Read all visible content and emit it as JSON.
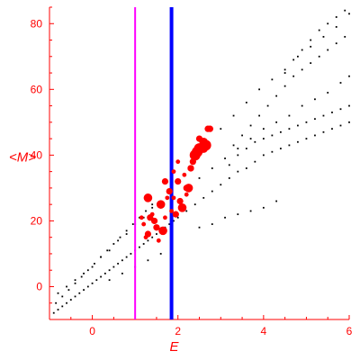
{
  "chart_data": {
    "type": "scatter",
    "title": "",
    "xlabel": "E",
    "ylabel": "<M>",
    "xlim": [
      -1,
      6
    ],
    "ylim": [
      -10,
      85
    ],
    "grid": false,
    "x_ticks": [
      "0",
      "2",
      "4",
      "6"
    ],
    "x_tick_values": [
      0,
      2,
      4,
      6
    ],
    "y_ticks": [
      "0",
      "20",
      "40",
      "60",
      "80"
    ],
    "y_tick_values": [
      0,
      20,
      40,
      60,
      80
    ],
    "axis_color": "#ff0000",
    "series": [
      {
        "color": "#000000",
        "marker": "small-dot",
        "x": [
          -0.9,
          -0.8,
          -0.7,
          -0.6,
          -0.5,
          -0.4,
          -0.3,
          -0.2,
          -0.1,
          0.0,
          0.1,
          0.2,
          0.3,
          0.4,
          0.5,
          0.6,
          0.7,
          0.8,
          0.9,
          1.0,
          1.1,
          1.2,
          1.3,
          1.4,
          1.5,
          1.6,
          1.7,
          1.8,
          1.9,
          2.0,
          2.2,
          2.4,
          2.6,
          2.8,
          3.0,
          3.2,
          3.4,
          3.6,
          3.8,
          4.0,
          4.2,
          4.4,
          4.6,
          4.8,
          5.0,
          5.2,
          5.4,
          5.6,
          5.8,
          6.0,
          -0.85,
          -0.7,
          -0.55,
          -0.4,
          -0.25,
          -0.1,
          0.05,
          0.2,
          0.35,
          0.5,
          0.65,
          0.8,
          0.95,
          1.1,
          1.25,
          1.4,
          -0.8,
          -0.6,
          -0.4,
          -0.2,
          0.0,
          0.2,
          0.4,
          0.6,
          0.8,
          1.0,
          1.2,
          1.4,
          1.6,
          2.2,
          2.5,
          2.8,
          3.1,
          3.4,
          3.7,
          4.0,
          4.3,
          4.6,
          4.9,
          5.2,
          5.5,
          5.8,
          6.0,
          2.4,
          2.7,
          3.0,
          3.3,
          3.6,
          3.9,
          4.2,
          4.5,
          4.8,
          5.1,
          5.4,
          5.7,
          6.0,
          3.2,
          3.4,
          3.6,
          3.8,
          4.0,
          4.2,
          4.4,
          4.6,
          4.8,
          5.0,
          5.2,
          5.4,
          5.6,
          5.8,
          6.0,
          3.3,
          3.5,
          3.7,
          3.9,
          4.1,
          4.3,
          4.5,
          4.7,
          4.9,
          5.1,
          5.3,
          5.5,
          5.7,
          5.9,
          4.5,
          4.7,
          4.9,
          5.1,
          5.3,
          5.5,
          5.7,
          5.9,
          2.5,
          2.8,
          3.1,
          3.4,
          3.7,
          4.0,
          4.3,
          0.4,
          0.7,
          1.0,
          1.3,
          1.6
        ],
        "y": [
          -8,
          -7,
          -6,
          -5,
          -4,
          -3,
          -2,
          -1,
          0,
          1,
          2,
          3,
          4,
          5,
          6,
          7,
          8,
          9,
          10,
          11,
          12,
          13,
          14,
          15,
          16,
          17,
          18,
          19,
          20,
          21,
          23,
          25,
          27,
          29,
          31,
          33,
          35,
          36,
          38,
          40,
          41,
          42,
          43,
          44,
          45,
          46,
          47,
          48,
          49,
          50,
          -5,
          -3,
          -1,
          1,
          3,
          5,
          7,
          9,
          11,
          13,
          15,
          17,
          19,
          21,
          23,
          25,
          -2,
          0,
          2,
          4,
          6,
          9,
          11,
          14,
          16,
          19,
          21,
          24,
          26,
          30,
          33,
          36,
          39,
          42,
          45,
          48,
          50,
          52,
          55,
          57,
          59,
          62,
          64,
          40,
          44,
          48,
          52,
          56,
          60,
          63,
          66,
          70,
          73,
          76,
          79,
          83,
          37,
          40,
          42,
          44,
          45,
          46,
          47,
          48,
          49,
          50,
          51,
          52,
          53,
          54,
          55,
          43,
          46,
          49,
          52,
          55,
          58,
          61,
          64,
          66,
          68,
          70,
          72,
          74,
          76,
          65,
          69,
          72,
          75,
          78,
          80,
          82,
          84,
          18,
          19,
          21,
          22,
          23,
          24,
          26,
          2,
          4,
          6,
          8,
          10
        ]
      },
      {
        "color": "#ff0000",
        "marker": "dot-varied",
        "x": [
          1.2,
          1.3,
          1.4,
          1.5,
          1.6,
          1.7,
          1.8,
          1.9,
          2.0,
          2.1,
          2.2,
          2.3,
          2.4,
          2.5,
          2.6,
          2.7,
          1.25,
          1.45,
          1.65,
          1.85,
          2.05,
          2.25,
          2.45,
          2.65,
          1.35,
          1.55,
          1.75,
          1.95,
          2.15,
          2.35,
          2.55,
          1.3,
          1.6,
          1.9,
          2.2,
          2.5,
          1.15,
          1.7,
          2.0,
          2.3,
          2.6,
          2.75
        ],
        "y": [
          19,
          16,
          22,
          18,
          25,
          21,
          29,
          27,
          32,
          24,
          28,
          36,
          40,
          42,
          44,
          48,
          15,
          20,
          17,
          23,
          26,
          30,
          41,
          43,
          21,
          14,
          27,
          22,
          34,
          38,
          42,
          27,
          25,
          35,
          30,
          45,
          21,
          32,
          38,
          36,
          42,
          48
        ],
        "sizes": [
          1,
          2,
          1,
          2,
          3,
          1,
          2,
          1,
          2,
          3,
          1,
          2,
          4,
          4,
          3,
          2,
          1,
          2,
          3,
          1,
          2,
          3,
          4,
          4,
          2,
          1,
          1,
          2,
          1,
          2,
          3,
          3,
          2,
          1,
          2,
          2,
          1,
          2,
          1,
          2,
          3,
          2
        ]
      }
    ],
    "reference_lines": [
      {
        "orientation": "vertical",
        "x": 1.0,
        "color": "#ff00ff"
      },
      {
        "orientation": "vertical",
        "x": 1.85,
        "color": "#0000ff"
      }
    ]
  }
}
